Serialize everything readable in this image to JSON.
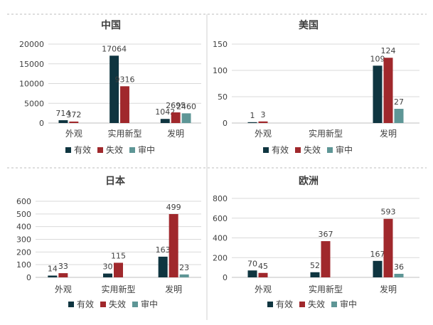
{
  "colors": {
    "有效": "#0f3540",
    "失效": "#a0282c",
    "审中": "#5e9696",
    "grid": "#d9d9d9",
    "axis": "#bfbfbf",
    "text": "#404040",
    "divider": "#bdbdbd"
  },
  "chart_data": [
    {
      "type": "bar",
      "title": "中国",
      "categories": [
        "外观",
        "实用新型",
        "发明"
      ],
      "series": [
        {
          "name": "有效",
          "values": [
            714,
            17064,
            1042
          ]
        },
        {
          "name": "失效",
          "values": [
            372,
            9316,
            2695
          ]
        },
        {
          "name": "审中",
          "values": [
            null,
            null,
            2460
          ]
        }
      ],
      "ylim": [
        0,
        20000
      ],
      "yticks": [
        0,
        5000,
        10000,
        15000,
        20000
      ],
      "grid": true,
      "legend": "bottom"
    },
    {
      "type": "bar",
      "title": "美国",
      "categories": [
        "外观",
        "实用新型",
        "发明"
      ],
      "series": [
        {
          "name": "有效",
          "values": [
            1,
            null,
            109
          ]
        },
        {
          "name": "失效",
          "values": [
            3,
            null,
            124
          ]
        },
        {
          "name": "审中",
          "values": [
            null,
            null,
            27
          ]
        }
      ],
      "ylim": [
        0,
        150
      ],
      "yticks": [
        0,
        50,
        100,
        150
      ],
      "grid": true,
      "legend": "bottom"
    },
    {
      "type": "bar",
      "title": "日本",
      "categories": [
        "外观",
        "实用新型",
        "发明"
      ],
      "series": [
        {
          "name": "有效",
          "values": [
            14,
            30,
            163
          ]
        },
        {
          "name": "失效",
          "values": [
            33,
            115,
            499
          ]
        },
        {
          "name": "审中",
          "values": [
            null,
            null,
            23
          ]
        }
      ],
      "ylim": [
        0,
        600
      ],
      "yticks": [
        0,
        100,
        200,
        300,
        400,
        500,
        600
      ],
      "grid": true,
      "legend": "bottom"
    },
    {
      "type": "bar",
      "title": "欧洲",
      "categories": [
        "外观",
        "实用新型",
        "发明"
      ],
      "series": [
        {
          "name": "有效",
          "values": [
            70,
            52,
            167
          ]
        },
        {
          "name": "失效",
          "values": [
            45,
            367,
            593
          ]
        },
        {
          "name": "审中",
          "values": [
            null,
            null,
            36
          ]
        }
      ],
      "ylim": [
        0,
        800
      ],
      "yticks": [
        0,
        200,
        400,
        600,
        800
      ],
      "grid": true,
      "legend": "bottom"
    }
  ]
}
